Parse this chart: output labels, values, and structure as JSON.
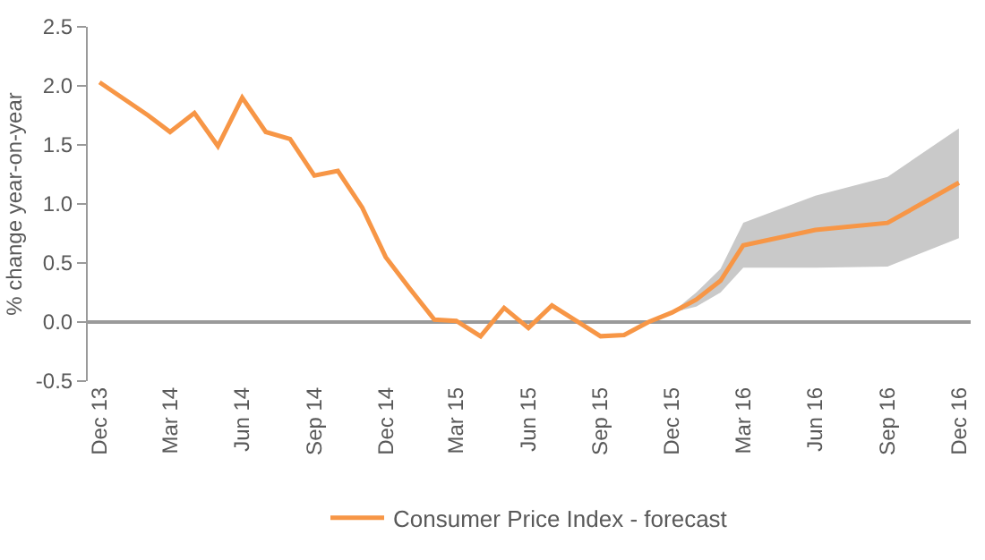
{
  "chart_data": {
    "type": "line",
    "ylabel": "% change year-on-year",
    "x": [
      "2013-12",
      "2014-01",
      "2014-02",
      "2014-03",
      "2014-04",
      "2014-05",
      "2014-06",
      "2014-07",
      "2014-08",
      "2014-09",
      "2014-10",
      "2014-11",
      "2014-12",
      "2015-01",
      "2015-02",
      "2015-03",
      "2015-04",
      "2015-05",
      "2015-06",
      "2015-07",
      "2015-08",
      "2015-09",
      "2015-10",
      "2015-11",
      "2015-12",
      "2016-01",
      "2016-02",
      "2016-03",
      "2016-06",
      "2016-09",
      "2016-12"
    ],
    "series": [
      {
        "name": "Consumer Price Index - forecast",
        "color": "#f79646",
        "values": [
          2.03,
          1.89,
          1.75,
          1.61,
          1.77,
          1.49,
          1.9,
          1.61,
          1.55,
          1.24,
          1.28,
          0.97,
          0.55,
          0.28,
          0.02,
          0.01,
          -0.12,
          0.12,
          -0.05,
          0.14,
          0.01,
          -0.12,
          -0.11,
          0.0,
          0.08,
          0.19,
          0.35,
          0.65,
          0.78,
          0.84,
          1.18
        ],
        "lower": [
          null,
          null,
          null,
          null,
          null,
          null,
          null,
          null,
          null,
          null,
          null,
          null,
          null,
          null,
          null,
          null,
          null,
          null,
          null,
          null,
          null,
          null,
          null,
          null,
          0.08,
          0.13,
          0.25,
          0.46,
          0.46,
          0.47,
          0.71
        ],
        "upper": [
          null,
          null,
          null,
          null,
          null,
          null,
          null,
          null,
          null,
          null,
          null,
          null,
          null,
          null,
          null,
          null,
          null,
          null,
          null,
          null,
          null,
          null,
          null,
          null,
          0.08,
          0.25,
          0.45,
          0.84,
          1.07,
          1.23,
          1.64
        ]
      }
    ],
    "xlim": [
      "2013-11-16",
      "2016-12-16"
    ],
    "xticks": [
      {
        "value": "2013-12",
        "label": "Dec 13"
      },
      {
        "value": "2014-03",
        "label": "Mar 14"
      },
      {
        "value": "2014-06",
        "label": "Jun 14"
      },
      {
        "value": "2014-09",
        "label": "Sep 14"
      },
      {
        "value": "2014-12",
        "label": "Dec 14"
      },
      {
        "value": "2015-03",
        "label": "Mar 15"
      },
      {
        "value": "2015-06",
        "label": "Jun 15"
      },
      {
        "value": "2015-09",
        "label": "Sep 15"
      },
      {
        "value": "2015-12",
        "label": "Dec 15"
      },
      {
        "value": "2016-03",
        "label": "Mar 16"
      },
      {
        "value": "2016-06",
        "label": "Jun 16"
      },
      {
        "value": "2016-09",
        "label": "Sep 16"
      },
      {
        "value": "2016-12",
        "label": "Dec 16"
      }
    ],
    "ylim": [
      -0.5,
      2.5
    ],
    "yticks": [
      {
        "value": -0.5,
        "label": "-0.5"
      },
      {
        "value": 0,
        "label": "0.0"
      },
      {
        "value": 0.5,
        "label": "0.5"
      },
      {
        "value": 1,
        "label": "1.0"
      },
      {
        "value": 1.5,
        "label": "1.5"
      },
      {
        "value": 2,
        "label": "2.0"
      },
      {
        "value": 2.5,
        "label": "2.5"
      }
    ],
    "legend": "bottom",
    "marker": "none",
    "line_style": "solid"
  }
}
